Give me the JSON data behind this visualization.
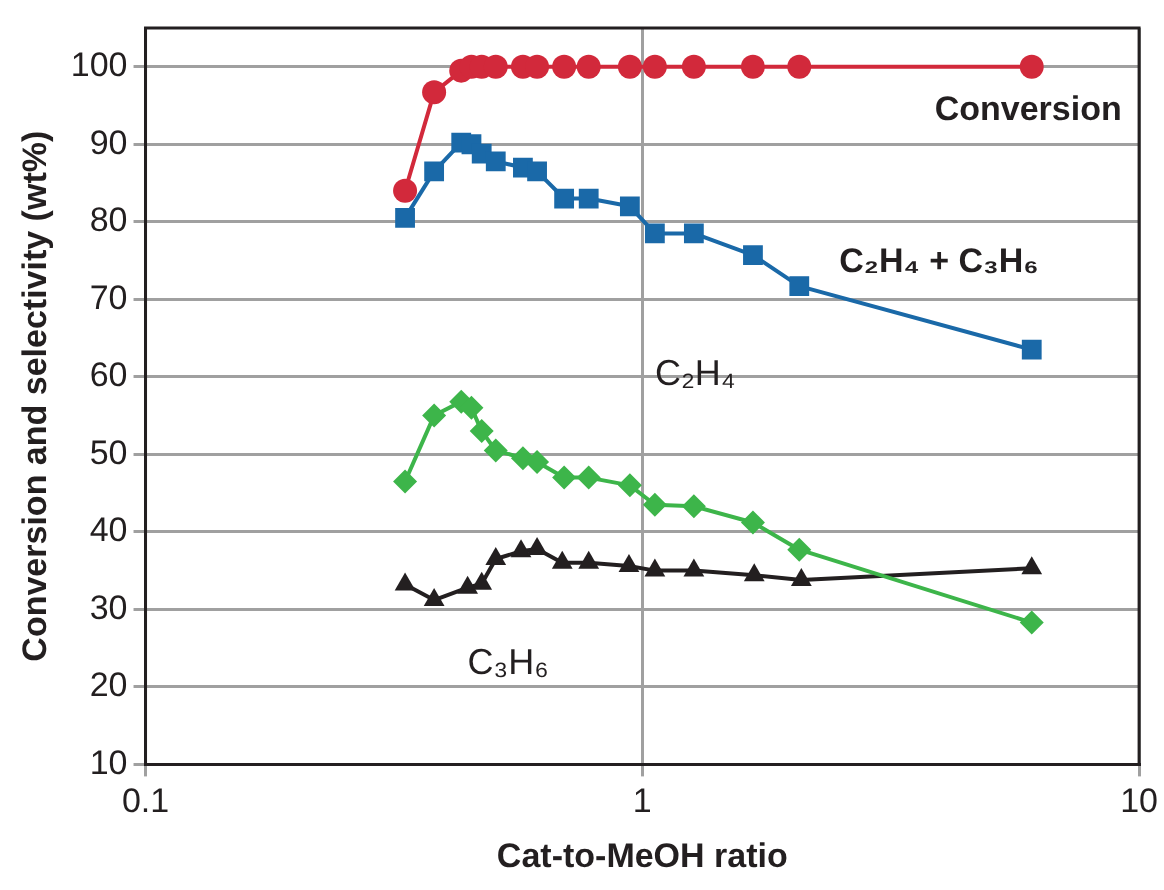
{
  "chart_data": {
    "type": "line",
    "xlabel": "Cat-to-MeOH ratio",
    "ylabel": "Conversion and selectivity (wt%)",
    "log": "x",
    "xlim": [
      0.1,
      10
    ],
    "xticks": [
      0.1,
      1,
      10
    ],
    "ylim": [
      10,
      105
    ],
    "yticks": [
      10,
      20,
      30,
      40,
      50,
      60,
      70,
      80,
      90,
      100
    ],
    "grid": true,
    "legend": false,
    "line_style": "solid",
    "x": [
      0.333,
      0.381,
      0.432,
      0.453,
      0.475,
      0.507,
      0.575,
      0.614,
      0.696,
      0.78,
      0.944,
      1.06,
      1.27,
      1.67,
      2.07,
      6.08
    ],
    "series": [
      {
        "name": "Conversion",
        "color": "#d2293b",
        "marker": "circle",
        "values": [
          84,
          96.7,
          99.5,
          100,
          100,
          100,
          100,
          100,
          100,
          100,
          100,
          100,
          100,
          100,
          100,
          100
        ]
      },
      {
        "name": "C₂H₄ + C₃H₆",
        "color": "#1a69a8",
        "marker": "square",
        "values": [
          80.5,
          86.5,
          90.2,
          90,
          88.8,
          87.8,
          87,
          86.5,
          83,
          83,
          82,
          78.5,
          78.5,
          75.7,
          71.7,
          63.5
        ]
      },
      {
        "name": "C₂H₄",
        "color": "#3db54a",
        "marker": "diamond",
        "values": [
          46.5,
          55,
          56.8,
          56,
          53,
          50.5,
          49.5,
          49,
          47,
          47,
          46,
          43.5,
          43.3,
          41.2,
          37.7,
          28.3
        ]
      },
      {
        "name": "C₃H₆",
        "color": "#231f20",
        "marker": "triangle",
        "x": [
          0.333,
          0.381,
          0.445,
          0.475,
          0.507,
          0.57,
          0.614,
          0.69,
          0.78,
          0.94,
          1.06,
          1.27,
          1.68,
          2.09,
          6.08
        ],
        "values": [
          33.2,
          31.2,
          32.8,
          33.3,
          36.5,
          37.5,
          37.8,
          36,
          36,
          35.6,
          35,
          35,
          34.4,
          33.8,
          35.3
        ]
      }
    ]
  }
}
